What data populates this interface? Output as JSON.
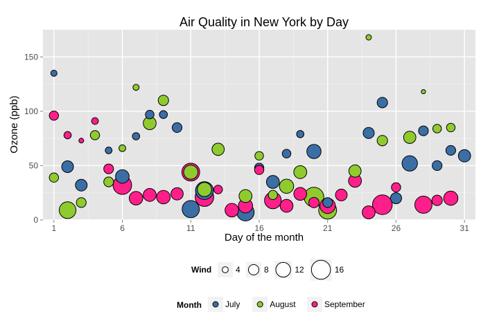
{
  "chart_data": {
    "type": "scatter",
    "title": "Air Quality in New York by Day",
    "xlabel": "Day of the month",
    "ylabel": "Ozone (ppb)",
    "xlim": [
      0.2,
      31.8
    ],
    "ylim": [
      0,
      175
    ],
    "x_ticks": [
      1,
      6,
      11,
      16,
      21,
      26,
      31
    ],
    "y_ticks": [
      0,
      50,
      100,
      150
    ],
    "grid": true,
    "size_by": "Wind",
    "color_by": "Month",
    "size_legend": {
      "title": "Wind",
      "values": [
        4,
        8,
        12,
        16
      ]
    },
    "color_legend": {
      "title": "Month",
      "entries": [
        {
          "name": "July",
          "color": "#3b6ea5"
        },
        {
          "name": "August",
          "color": "#8fcb2e"
        },
        {
          "name": "September",
          "color": "#ff1f8b"
        }
      ]
    },
    "series": [
      {
        "name": "July",
        "color": "#3b6ea5",
        "points": [
          {
            "x": 1,
            "y": 135,
            "wind": 4.1
          },
          {
            "x": 2,
            "y": 49,
            "wind": 9.2
          },
          {
            "x": 3,
            "y": 32,
            "wind": 9.2
          },
          {
            "x": 5,
            "y": 64,
            "wind": 4.6
          },
          {
            "x": 6,
            "y": 40,
            "wind": 10.9
          },
          {
            "x": 7,
            "y": 77,
            "wind": 5.1
          },
          {
            "x": 8,
            "y": 97,
            "wind": 6.3
          },
          {
            "x": 9,
            "y": 97,
            "wind": 5.7
          },
          {
            "x": 10,
            "y": 85,
            "wind": 7.4
          },
          {
            "x": 11,
            "y": 10,
            "wind": 14.3
          },
          {
            "x": 12,
            "y": 27,
            "wind": 14.9
          },
          {
            "x": 15,
            "y": 7,
            "wind": 14.3
          },
          {
            "x": 16,
            "y": 48,
            "wind": 6.9
          },
          {
            "x": 17,
            "y": 35,
            "wind": 10.3
          },
          {
            "x": 18,
            "y": 61,
            "wind": 6.3
          },
          {
            "x": 19,
            "y": 79,
            "wind": 5.1
          },
          {
            "x": 20,
            "y": 63,
            "wind": 11.5
          },
          {
            "x": 21,
            "y": 16,
            "wind": 7.4
          },
          {
            "x": 24,
            "y": 80,
            "wind": 8.6
          },
          {
            "x": 25,
            "y": 108,
            "wind": 8.0
          },
          {
            "x": 26,
            "y": 20,
            "wind": 8.6
          },
          {
            "x": 27,
            "y": 52,
            "wind": 12.6
          },
          {
            "x": 28,
            "y": 82,
            "wind": 7.4
          },
          {
            "x": 29,
            "y": 50,
            "wind": 7.4
          },
          {
            "x": 30,
            "y": 64,
            "wind": 7.4
          },
          {
            "x": 31,
            "y": 59,
            "wind": 9.7
          }
        ]
      },
      {
        "name": "August",
        "color": "#8fcb2e",
        "points": [
          {
            "x": 1,
            "y": 39,
            "wind": 6.9
          },
          {
            "x": 2,
            "y": 9,
            "wind": 13.8
          },
          {
            "x": 3,
            "y": 16,
            "wind": 7.4
          },
          {
            "x": 4,
            "y": 78,
            "wind": 6.9
          },
          {
            "x": 5,
            "y": 35,
            "wind": 7.4
          },
          {
            "x": 6,
            "y": 66,
            "wind": 4.6
          },
          {
            "x": 7,
            "y": 122,
            "wind": 4.0
          },
          {
            "x": 8,
            "y": 89,
            "wind": 10.3
          },
          {
            "x": 9,
            "y": 110,
            "wind": 8.0
          },
          {
            "x": 11,
            "y": 44,
            "wind": 11.5
          },
          {
            "x": 12,
            "y": 28,
            "wind": 11.5
          },
          {
            "x": 13,
            "y": 65,
            "wind": 9.7
          },
          {
            "x": 15,
            "y": 22,
            "wind": 10.3
          },
          {
            "x": 16,
            "y": 59,
            "wind": 6.3
          },
          {
            "x": 17,
            "y": 23,
            "wind": 6.9
          },
          {
            "x": 18,
            "y": 31,
            "wind": 11.5
          },
          {
            "x": 19,
            "y": 44,
            "wind": 10.3
          },
          {
            "x": 20,
            "y": 21,
            "wind": 16.6
          },
          {
            "x": 21,
            "y": 9,
            "wind": 14.9
          },
          {
            "x": 23,
            "y": 45,
            "wind": 9.7
          },
          {
            "x": 24,
            "y": 168,
            "wind": 3.4
          },
          {
            "x": 25,
            "y": 73,
            "wind": 8.0
          },
          {
            "x": 27,
            "y": 76,
            "wind": 9.7
          },
          {
            "x": 28,
            "y": 118,
            "wind": 2.3
          },
          {
            "x": 29,
            "y": 84,
            "wind": 6.3
          },
          {
            "x": 30,
            "y": 85,
            "wind": 6.3
          }
        ]
      },
      {
        "name": "September",
        "color": "#ff1f8b",
        "points": [
          {
            "x": 1,
            "y": 96,
            "wind": 6.9
          },
          {
            "x": 2,
            "y": 78,
            "wind": 5.1
          },
          {
            "x": 3,
            "y": 73,
            "wind": 2.8
          },
          {
            "x": 4,
            "y": 91,
            "wind": 4.6
          },
          {
            "x": 5,
            "y": 47,
            "wind": 7.4
          },
          {
            "x": 6,
            "y": 32,
            "wind": 15.5
          },
          {
            "x": 7,
            "y": 20,
            "wind": 10.9
          },
          {
            "x": 8,
            "y": 23,
            "wind": 10.3
          },
          {
            "x": 9,
            "y": 21,
            "wind": 10.9
          },
          {
            "x": 10,
            "y": 24,
            "wind": 9.7
          },
          {
            "x": 11,
            "y": 44,
            "wind": 14.9
          },
          {
            "x": 12,
            "y": 21,
            "wind": 15.5
          },
          {
            "x": 13,
            "y": 28,
            "wind": 6.3
          },
          {
            "x": 14,
            "y": 9,
            "wind": 10.9
          },
          {
            "x": 15,
            "y": 13,
            "wind": 11.5
          },
          {
            "x": 16,
            "y": 46,
            "wind": 6.9
          },
          {
            "x": 17,
            "y": 18,
            "wind": 13.8
          },
          {
            "x": 18,
            "y": 13,
            "wind": 10.3
          },
          {
            "x": 19,
            "y": 24,
            "wind": 10.3
          },
          {
            "x": 20,
            "y": 16,
            "wind": 8.0
          },
          {
            "x": 21,
            "y": 13,
            "wind": 12.6
          },
          {
            "x": 22,
            "y": 23,
            "wind": 9.2
          },
          {
            "x": 23,
            "y": 36,
            "wind": 10.3
          },
          {
            "x": 24,
            "y": 7,
            "wind": 10.3
          },
          {
            "x": 25,
            "y": 14,
            "wind": 16.6
          },
          {
            "x": 26,
            "y": 30,
            "wind": 6.9
          },
          {
            "x": 28,
            "y": 14,
            "wind": 14.3
          },
          {
            "x": 29,
            "y": 18,
            "wind": 8.0
          },
          {
            "x": 30,
            "y": 20,
            "wind": 11.5
          }
        ]
      }
    ]
  }
}
